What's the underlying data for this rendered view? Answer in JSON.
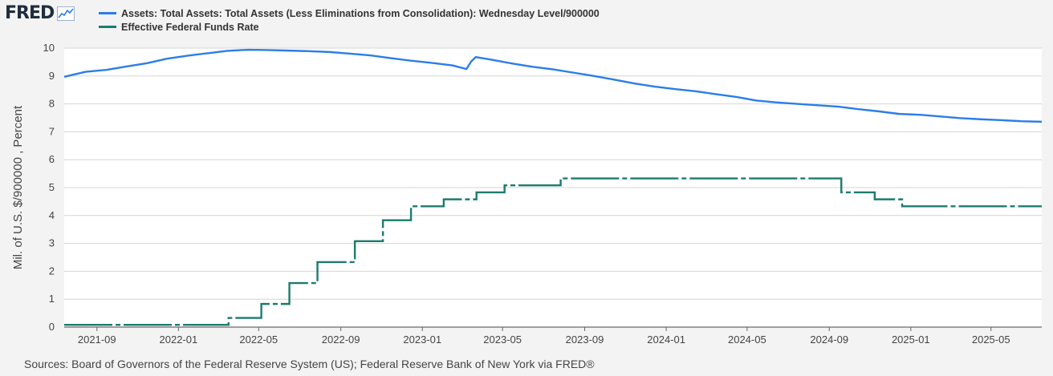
{
  "header": {
    "logo_text": "FRED"
  },
  "source": "Sources: Board of Governors of the Federal Reserve System (US); Federal Reserve Bank of New York via FRED®",
  "chart_data": {
    "type": "line",
    "title": "",
    "xlabel": "",
    "ylabel": "Mil. of U.S. $/900000 , Percent",
    "ylim": [
      0,
      10
    ],
    "yticks": [
      "0",
      "1",
      "2",
      "3",
      "4",
      "5",
      "6",
      "7",
      "8",
      "9",
      "10"
    ],
    "xlim": [
      "2021-07-14",
      "2025-07-16"
    ],
    "xticks": [
      "2021-09",
      "2022-01",
      "2022-05",
      "2022-09",
      "2023-01",
      "2023-05",
      "2023-09",
      "2024-01",
      "2024-05",
      "2024-09",
      "2025-01",
      "2025-05"
    ],
    "grid": "horizontal",
    "legend_position": "top-left",
    "series": [
      {
        "name": "Assets: Total Assets: Total Assets (Less Eliminations from Consolidation): Wednesday Level/900000",
        "color": "#2b7de9",
        "style": "solid",
        "points": [
          [
            "2021-07-14",
            8.97
          ],
          [
            "2021-08-15",
            9.15
          ],
          [
            "2021-09-15",
            9.22
          ],
          [
            "2021-10-15",
            9.34
          ],
          [
            "2021-11-15",
            9.46
          ],
          [
            "2021-12-15",
            9.62
          ],
          [
            "2022-01-15",
            9.73
          ],
          [
            "2022-02-15",
            9.82
          ],
          [
            "2022-03-15",
            9.9
          ],
          [
            "2022-04-15",
            9.94
          ],
          [
            "2022-05-15",
            9.93
          ],
          [
            "2022-06-15",
            9.91
          ],
          [
            "2022-07-15",
            9.89
          ],
          [
            "2022-08-15",
            9.86
          ],
          [
            "2022-09-15",
            9.8
          ],
          [
            "2022-10-15",
            9.74
          ],
          [
            "2022-11-15",
            9.64
          ],
          [
            "2022-12-15",
            9.55
          ],
          [
            "2023-01-15",
            9.47
          ],
          [
            "2023-02-15",
            9.38
          ],
          [
            "2023-03-08",
            9.25
          ],
          [
            "2023-03-15",
            9.52
          ],
          [
            "2023-03-22",
            9.68
          ],
          [
            "2023-04-15",
            9.58
          ],
          [
            "2023-05-15",
            9.45
          ],
          [
            "2023-06-15",
            9.33
          ],
          [
            "2023-07-15",
            9.24
          ],
          [
            "2023-08-15",
            9.12
          ],
          [
            "2023-09-15",
            9.0
          ],
          [
            "2023-10-15",
            8.87
          ],
          [
            "2023-11-15",
            8.73
          ],
          [
            "2023-12-15",
            8.62
          ],
          [
            "2024-01-15",
            8.53
          ],
          [
            "2024-02-15",
            8.45
          ],
          [
            "2024-03-15",
            8.35
          ],
          [
            "2024-04-15",
            8.25
          ],
          [
            "2024-05-15",
            8.12
          ],
          [
            "2024-06-15",
            8.05
          ],
          [
            "2024-07-15",
            8.0
          ],
          [
            "2024-08-15",
            7.95
          ],
          [
            "2024-09-15",
            7.9
          ],
          [
            "2024-10-15",
            7.81
          ],
          [
            "2024-11-15",
            7.73
          ],
          [
            "2024-12-15",
            7.64
          ],
          [
            "2025-01-15",
            7.61
          ],
          [
            "2025-02-15",
            7.55
          ],
          [
            "2025-03-15",
            7.49
          ],
          [
            "2025-04-15",
            7.45
          ],
          [
            "2025-05-15",
            7.42
          ],
          [
            "2025-06-15",
            7.38
          ],
          [
            "2025-07-16",
            7.36
          ]
        ]
      },
      {
        "name": "Effective Federal Funds Rate",
        "color": "#1c7b6e",
        "style": "step",
        "points": [
          [
            "2021-07-14",
            0.08
          ],
          [
            "2022-03-17",
            0.33
          ],
          [
            "2022-05-05",
            0.83
          ],
          [
            "2022-06-16",
            1.58
          ],
          [
            "2022-07-28",
            2.33
          ],
          [
            "2022-09-22",
            3.08
          ],
          [
            "2022-11-03",
            3.83
          ],
          [
            "2022-12-15",
            4.33
          ],
          [
            "2023-02-02",
            4.58
          ],
          [
            "2023-03-23",
            4.83
          ],
          [
            "2023-05-04",
            5.08
          ],
          [
            "2023-07-27",
            5.33
          ],
          [
            "2024-09-19",
            4.83
          ],
          [
            "2024-11-08",
            4.58
          ],
          [
            "2024-12-19",
            4.33
          ],
          [
            "2025-07-16",
            4.33
          ]
        ]
      }
    ]
  }
}
